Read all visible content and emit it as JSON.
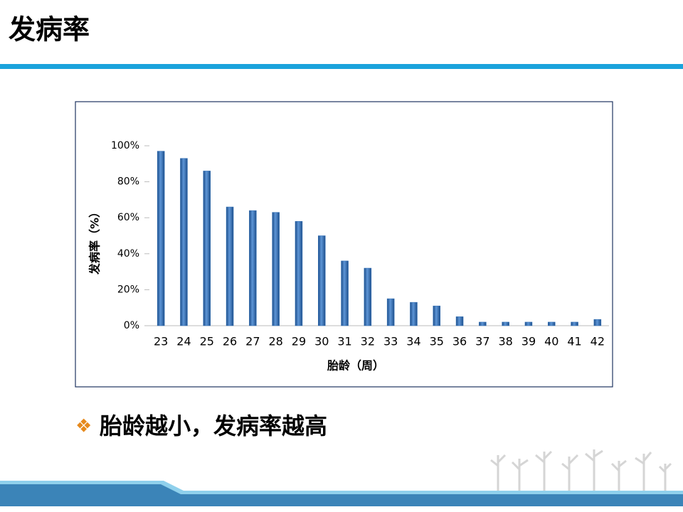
{
  "slide": {
    "title": "发病率",
    "bullet": "胎龄越小，发病率越高"
  },
  "chart_data": {
    "type": "bar",
    "categories": [
      "23",
      "24",
      "25",
      "26",
      "27",
      "28",
      "29",
      "30",
      "31",
      "32",
      "33",
      "34",
      "35",
      "36",
      "37",
      "38",
      "39",
      "40",
      "41",
      "42"
    ],
    "values": [
      97,
      93,
      86,
      66,
      64,
      63,
      58,
      50,
      36,
      32,
      15,
      13,
      11,
      5,
      2,
      2,
      2,
      2,
      2,
      3.5
    ],
    "color": "#2f6eb5",
    "x_label": "胎龄（周）",
    "y_label": "发病率（%）",
    "ylim": [
      0,
      100
    ],
    "yticks": [
      {
        "value": 0,
        "label": "0%"
      },
      {
        "value": 20,
        "label": "20%"
      },
      {
        "value": 40,
        "label": "40%"
      },
      {
        "value": 60,
        "label": "60%"
      },
      {
        "value": 80,
        "label": "80%"
      },
      {
        "value": 100,
        "label": "100%"
      }
    ],
    "grid": false
  }
}
